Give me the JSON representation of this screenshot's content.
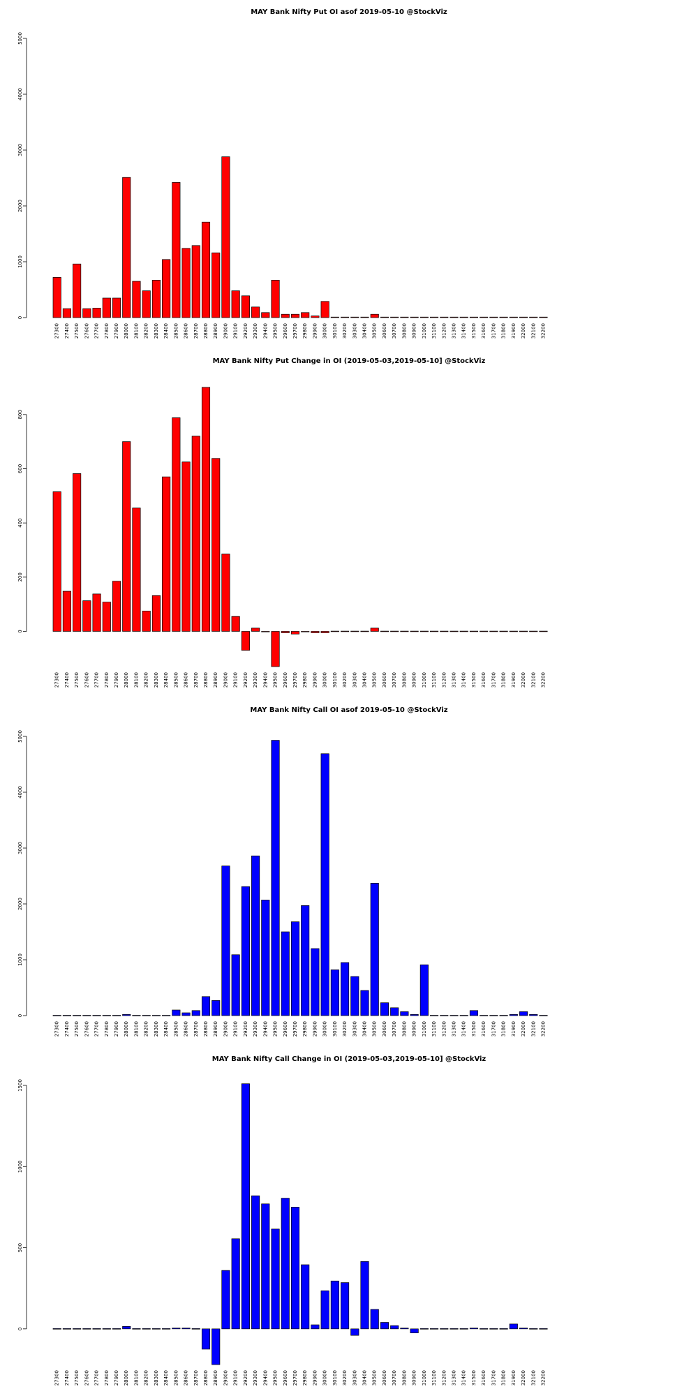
{
  "charts_common": {
    "strikes": [
      "27300",
      "27400",
      "27500",
      "27600",
      "27700",
      "27800",
      "27900",
      "28000",
      "28100",
      "28200",
      "28300",
      "28400",
      "28500",
      "28600",
      "28700",
      "28800",
      "28900",
      "29000",
      "29100",
      "29200",
      "29300",
      "29400",
      "29500",
      "29600",
      "29700",
      "29800",
      "29900",
      "30000",
      "30100",
      "30200",
      "30300",
      "30400",
      "30500",
      "30600",
      "30700",
      "30800",
      "30900",
      "31000",
      "31100",
      "31200",
      "31300",
      "31400",
      "31500",
      "31600",
      "31700",
      "31800",
      "31900",
      "32000",
      "32100",
      "32200"
    ]
  },
  "chart_data": [
    {
      "type": "bar",
      "title": "MAY Bank Nifty Put OI asof 2019-05-10 @StockViz",
      "color": "#ff0000",
      "ylim": [
        0,
        5000
      ],
      "yticks": [
        0,
        1000,
        2000,
        3000,
        4000,
        5000
      ],
      "values": [
        720,
        160,
        960,
        160,
        170,
        350,
        350,
        2510,
        650,
        480,
        670,
        1040,
        2420,
        1240,
        1290,
        1710,
        1160,
        2880,
        480,
        390,
        190,
        90,
        670,
        60,
        60,
        90,
        30,
        290,
        10,
        10,
        10,
        10,
        60,
        10,
        10,
        10,
        10,
        10,
        10,
        10,
        10,
        10,
        10,
        10,
        10,
        10,
        10,
        10,
        10,
        10
      ]
    },
    {
      "type": "bar",
      "title": "MAY Bank Nifty Put Change in OI (2019-05-03,2019-05-10] @StockViz",
      "color": "#ff0000",
      "ylim": [
        -130,
        900
      ],
      "yticks": [
        0,
        200,
        400,
        600,
        800
      ],
      "values": [
        515,
        148,
        582,
        113,
        138,
        108,
        185,
        700,
        455,
        75,
        132,
        570,
        788,
        625,
        720,
        900,
        638,
        285,
        55,
        -70,
        12,
        -2,
        -130,
        -5,
        -10,
        -2,
        -5,
        -5,
        0,
        0,
        0,
        0,
        12,
        0,
        0,
        0,
        0,
        0,
        0,
        0,
        0,
        0,
        0,
        0,
        0,
        0,
        0,
        0,
        0,
        0
      ]
    },
    {
      "type": "bar",
      "title": "MAY Bank Nifty Call OI asof 2019-05-10 @StockViz",
      "color": "#0000ff",
      "ylim": [
        0,
        5000
      ],
      "yticks": [
        0,
        1000,
        2000,
        3000,
        4000,
        5000
      ],
      "values": [
        0,
        0,
        0,
        0,
        0,
        0,
        0,
        20,
        0,
        0,
        0,
        0,
        100,
        50,
        90,
        340,
        270,
        2680,
        1090,
        2310,
        2860,
        2070,
        4930,
        1500,
        1680,
        1970,
        1200,
        4690,
        820,
        950,
        700,
        450,
        2370,
        230,
        140,
        70,
        20,
        910,
        0,
        0,
        0,
        0,
        90,
        0,
        0,
        0,
        20,
        70,
        20,
        0
      ]
    },
    {
      "type": "bar",
      "title": "MAY Bank Nifty Call Change in OI (2019-05-03,2019-05-10] @StockViz",
      "color": "#0000ff",
      "ylim": [
        -220,
        1500
      ],
      "yticks": [
        0,
        500,
        1000,
        1500
      ],
      "values": [
        0,
        0,
        0,
        0,
        0,
        0,
        0,
        15,
        0,
        0,
        0,
        0,
        5,
        5,
        0,
        -125,
        -220,
        360,
        555,
        1510,
        820,
        770,
        615,
        805,
        750,
        395,
        25,
        235,
        295,
        285,
        -40,
        415,
        120,
        40,
        20,
        5,
        -25,
        0,
        0,
        0,
        0,
        0,
        5,
        0,
        0,
        0,
        30,
        5,
        0,
        0
      ]
    }
  ]
}
